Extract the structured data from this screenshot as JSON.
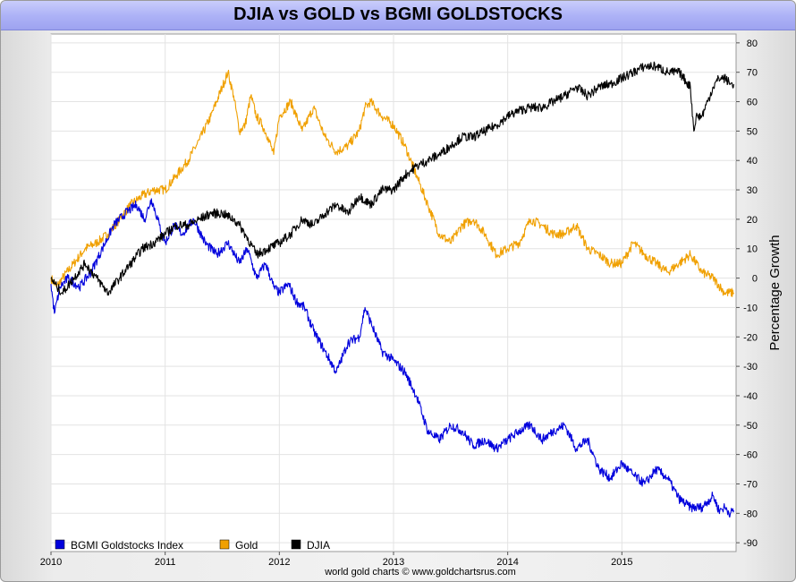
{
  "chart_data": {
    "type": "line",
    "title": "DJIA vs GOLD vs BGMI GOLDSTOCKS",
    "xlabel": "",
    "ylabel": "Percentage Growth",
    "xlim": [
      2010.0,
      2016.0
    ],
    "ylim": [
      -93,
      83
    ],
    "x_ticks": [
      "2010",
      "2011",
      "2012",
      "2013",
      "2014",
      "2015"
    ],
    "y_ticks": [
      80,
      70,
      60,
      50,
      40,
      30,
      20,
      10,
      0,
      -10,
      -20,
      -30,
      -40,
      -50,
      -60,
      -70,
      -80,
      -90
    ],
    "grid": true,
    "legend_position": "bottom-left",
    "footer": "world gold charts © www.goldchartsrus.com",
    "series": [
      {
        "name": "BGMI Goldstocks Index",
        "color": "#0000dd",
        "x": [
          2010.0,
          2010.03,
          2010.08,
          2010.15,
          2010.25,
          2010.35,
          2010.45,
          2010.55,
          2010.65,
          2010.75,
          2010.82,
          2010.88,
          2010.95,
          2011.0,
          2011.08,
          2011.15,
          2011.25,
          2011.35,
          2011.45,
          2011.55,
          2011.65,
          2011.72,
          2011.8,
          2011.88,
          2011.95,
          2012.0,
          2012.08,
          2012.15,
          2012.22,
          2012.3,
          2012.4,
          2012.5,
          2012.6,
          2012.7,
          2012.75,
          2012.8,
          2012.9,
          2013.0,
          2013.1,
          2013.2,
          2013.3,
          2013.4,
          2013.5,
          2013.6,
          2013.7,
          2013.8,
          2013.9,
          2014.0,
          2014.1,
          2014.2,
          2014.3,
          2014.4,
          2014.5,
          2014.6,
          2014.7,
          2014.8,
          2014.9,
          2015.0,
          2015.1,
          2015.2,
          2015.3,
          2015.4,
          2015.5,
          2015.6,
          2015.7,
          2015.75,
          2015.8,
          2015.85,
          2015.9,
          2015.95,
          2015.98
        ],
        "values": [
          -2,
          -12,
          -3,
          0,
          -3,
          2,
          10,
          18,
          22,
          25,
          20,
          27,
          18,
          12,
          18,
          15,
          20,
          12,
          8,
          12,
          5,
          10,
          0,
          5,
          -3,
          -5,
          -2,
          -8,
          -10,
          -18,
          -25,
          -32,
          -22,
          -20,
          -10,
          -15,
          -25,
          -28,
          -32,
          -40,
          -52,
          -55,
          -50,
          -52,
          -57,
          -55,
          -58,
          -55,
          -52,
          -50,
          -55,
          -52,
          -50,
          -58,
          -55,
          -65,
          -68,
          -63,
          -67,
          -70,
          -65,
          -68,
          -75,
          -78,
          -78,
          -76,
          -74,
          -79,
          -78,
          -80,
          -79
        ]
      },
      {
        "name": "Gold",
        "color": "#f0a000",
        "x": [
          2010.0,
          2010.05,
          2010.1,
          2010.2,
          2010.3,
          2010.4,
          2010.5,
          2010.6,
          2010.7,
          2010.8,
          2010.9,
          2011.0,
          2011.1,
          2011.2,
          2011.3,
          2011.4,
          2011.5,
          2011.55,
          2011.6,
          2011.65,
          2011.7,
          2011.75,
          2011.8,
          2011.85,
          2011.9,
          2011.95,
          2012.0,
          2012.1,
          2012.2,
          2012.3,
          2012.4,
          2012.5,
          2012.6,
          2012.7,
          2012.75,
          2012.8,
          2012.9,
          2013.0,
          2013.1,
          2013.2,
          2013.3,
          2013.4,
          2013.5,
          2013.6,
          2013.7,
          2013.8,
          2013.9,
          2014.0,
          2014.1,
          2014.2,
          2014.3,
          2014.4,
          2014.5,
          2014.6,
          2014.7,
          2014.8,
          2014.9,
          2015.0,
          2015.1,
          2015.2,
          2015.3,
          2015.4,
          2015.5,
          2015.6,
          2015.7,
          2015.8,
          2015.9,
          2015.98
        ],
        "values": [
          0,
          -3,
          0,
          5,
          10,
          12,
          15,
          20,
          25,
          28,
          30,
          30,
          35,
          40,
          47,
          55,
          65,
          70,
          62,
          50,
          52,
          62,
          55,
          52,
          48,
          42,
          55,
          60,
          50,
          58,
          48,
          43,
          45,
          50,
          58,
          60,
          55,
          52,
          45,
          35,
          25,
          15,
          12,
          18,
          20,
          15,
          8,
          10,
          12,
          20,
          18,
          15,
          15,
          18,
          10,
          8,
          5,
          5,
          12,
          8,
          5,
          2,
          5,
          8,
          2,
          0,
          -5,
          -5
        ]
      },
      {
        "name": "DJIA",
        "color": "#000000",
        "x": [
          2010.0,
          2010.05,
          2010.1,
          2010.2,
          2010.3,
          2010.4,
          2010.5,
          2010.6,
          2010.7,
          2010.8,
          2010.9,
          2011.0,
          2011.1,
          2011.2,
          2011.3,
          2011.4,
          2011.5,
          2011.6,
          2011.65,
          2011.7,
          2011.8,
          2011.9,
          2012.0,
          2012.1,
          2012.2,
          2012.3,
          2012.4,
          2012.5,
          2012.6,
          2012.7,
          2012.8,
          2012.9,
          2013.0,
          2013.1,
          2013.2,
          2013.3,
          2013.4,
          2013.5,
          2013.6,
          2013.7,
          2013.8,
          2013.9,
          2014.0,
          2014.1,
          2014.2,
          2014.3,
          2014.4,
          2014.5,
          2014.6,
          2014.7,
          2014.8,
          2014.9,
          2015.0,
          2015.1,
          2015.2,
          2015.3,
          2015.4,
          2015.5,
          2015.6,
          2015.63,
          2015.65,
          2015.7,
          2015.75,
          2015.8,
          2015.85,
          2015.9,
          2015.95,
          2015.98
        ],
        "values": [
          0,
          -3,
          -5,
          0,
          5,
          0,
          -5,
          0,
          5,
          10,
          12,
          15,
          18,
          18,
          20,
          22,
          22,
          20,
          18,
          15,
          8,
          10,
          12,
          15,
          20,
          18,
          22,
          25,
          22,
          28,
          25,
          30,
          30,
          35,
          38,
          40,
          42,
          45,
          48,
          48,
          50,
          52,
          55,
          57,
          58,
          58,
          60,
          62,
          65,
          62,
          65,
          66,
          68,
          70,
          72,
          72,
          70,
          70,
          65,
          50,
          55,
          55,
          60,
          65,
          68,
          68,
          66,
          66
        ]
      }
    ]
  }
}
